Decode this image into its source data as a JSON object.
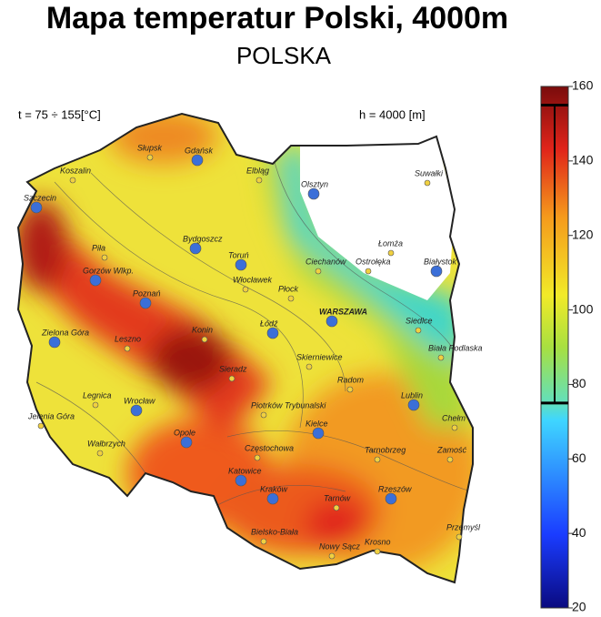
{
  "header": {
    "title": "Mapa temperatur Polski, 4000m",
    "subtitle": "POLSKA"
  },
  "annotations": {
    "temperature_range": "t = 75 ÷ 155[°C]",
    "depth": "h = 4000 [m]"
  },
  "colorbar": {
    "lim": [
      20,
      160
    ],
    "ticks": [
      20,
      40,
      60,
      80,
      100,
      120,
      140,
      160
    ],
    "marked_range": [
      75,
      155
    ]
  },
  "cities": [
    "Słupsk",
    "Gdańsk",
    "Koszalin",
    "Elbląg",
    "Olsztyn",
    "Suwałki",
    "Szczecin",
    "Łomża",
    "Piła",
    "Bydgoszcz",
    "Toruń",
    "Gorzów Wlkp.",
    "Ciechanów",
    "Ostrołęka",
    "Białystok",
    "Włocławek",
    "Płock",
    "Poznań",
    "WARSZAWA",
    "Siedlce",
    "Zielona Góra",
    "Leszno",
    "Konin",
    "Biała Podlaska",
    "Łódź",
    "Skierniewice",
    "Sieradz",
    "Radom",
    "Legnica",
    "Wrocław",
    "Piotrków Trybunalski",
    "Lublin",
    "Jelenia Góra",
    "Chełm",
    "Kielce",
    "Wałbrzych",
    "Opole",
    "Częstochowa",
    "Tarnobrzeg",
    "Zamość",
    "Katowice",
    "Kraków",
    "Rzeszów",
    "Tarnów",
    "Bielsko-Biała",
    "Przemyśl",
    "Krosno",
    "Nowy Sącz"
  ]
}
